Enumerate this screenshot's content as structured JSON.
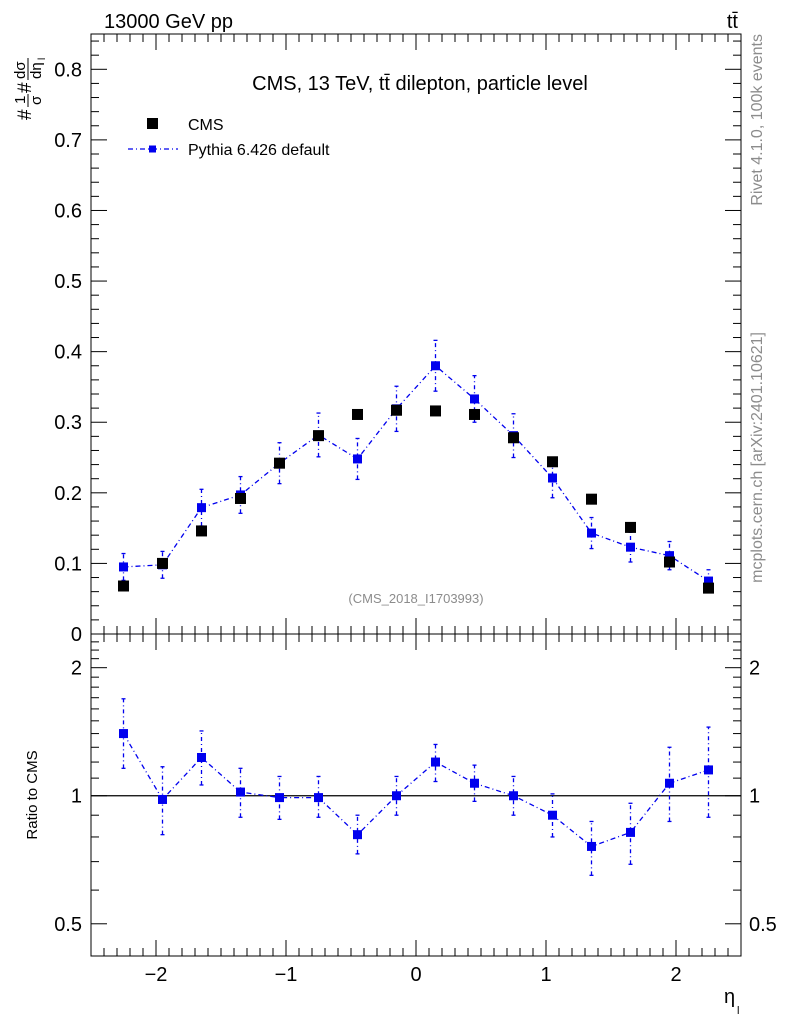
{
  "header": {
    "energy_label": "13000 GeV pp",
    "process_label": "tt̄",
    "rivet_label": "Rivet 4.1.0,  100k events",
    "site_label": "mcplots.cern.ch [arXiv:2401.10621]",
    "analysis_id": "(CMS_2018_I1703993)"
  },
  "colors": {
    "data": "#000000",
    "mc": "#0000ee",
    "watermark": "#8c8c8c"
  },
  "chart_data": [
    {
      "type": "scatter",
      "panel": "main",
      "title": "CMS, 13 TeV, tt̄ dilepton, particle level",
      "ylabel_parts": [
        "#",
        "1",
        "σ",
        "#",
        "dσ",
        "dη",
        "l"
      ],
      "xlim": [
        -2.5,
        2.5
      ],
      "ylim": [
        0,
        0.85
      ],
      "yticks": [
        0,
        0.1,
        0.2,
        0.3,
        0.4,
        0.5,
        0.6,
        0.7,
        0.8
      ],
      "ytick_labels": [
        "0",
        "0.1",
        "0.2",
        "0.3",
        "0.4",
        "0.5",
        "0.6",
        "0.7",
        "0.8"
      ],
      "x": [
        -2.25,
        -1.95,
        -1.65,
        -1.35,
        -1.05,
        -0.75,
        -0.45,
        -0.15,
        0.15,
        0.45,
        0.75,
        1.05,
        1.35,
        1.65,
        1.95,
        2.25
      ],
      "series": [
        {
          "name": "CMS",
          "marker": "square",
          "values": [
            0.068,
            0.1,
            0.146,
            0.192,
            0.242,
            0.281,
            0.311,
            0.317,
            0.316,
            0.311,
            0.278,
            0.244,
            0.191,
            0.151,
            0.102,
            0.065
          ]
        },
        {
          "name": "Pythia 6.426 default",
          "marker": "square-line",
          "values": [
            0.095,
            0.098,
            0.179,
            0.197,
            0.242,
            0.282,
            0.248,
            0.319,
            0.38,
            0.333,
            0.281,
            0.221,
            0.143,
            0.123,
            0.111,
            0.075
          ],
          "errors": [
            0.019,
            0.019,
            0.026,
            0.026,
            0.029,
            0.031,
            0.029,
            0.032,
            0.036,
            0.033,
            0.031,
            0.028,
            0.022,
            0.021,
            0.02,
            0.016
          ]
        }
      ]
    },
    {
      "type": "scatter",
      "panel": "ratio",
      "ylabel": "Ratio to CMS",
      "xlabel": "η",
      "xlabel_sub": "l",
      "xlim": [
        -2.5,
        2.5
      ],
      "ylim": [
        0.42,
        2.4
      ],
      "yticks": [
        0.5,
        1,
        2
      ],
      "ytick_labels": [
        "0.5",
        "1",
        "2"
      ],
      "xticks": [
        -2,
        -1,
        0,
        1,
        2
      ],
      "xtick_labels": [
        "−2",
        "−1",
        "0",
        "1",
        "2"
      ],
      "x": [
        -2.25,
        -1.95,
        -1.65,
        -1.35,
        -1.05,
        -0.75,
        -0.45,
        -0.15,
        0.15,
        0.45,
        0.75,
        1.05,
        1.35,
        1.65,
        1.95,
        2.25
      ],
      "series": [
        {
          "name": "Pythia 6.426 default / CMS",
          "values": [
            1.4,
            0.98,
            1.23,
            1.02,
            0.99,
            0.99,
            0.81,
            1.0,
            1.2,
            1.07,
            1.0,
            0.9,
            0.76,
            0.82,
            1.07,
            1.15
          ],
          "err_low": [
            0.24,
            0.17,
            0.17,
            0.13,
            0.11,
            0.1,
            0.08,
            0.1,
            0.12,
            0.1,
            0.1,
            0.1,
            0.11,
            0.13,
            0.2,
            0.26
          ],
          "err_high": [
            0.29,
            0.19,
            0.19,
            0.14,
            0.12,
            0.12,
            0.09,
            0.11,
            0.12,
            0.11,
            0.11,
            0.11,
            0.11,
            0.14,
            0.23,
            0.3
          ]
        }
      ]
    }
  ]
}
